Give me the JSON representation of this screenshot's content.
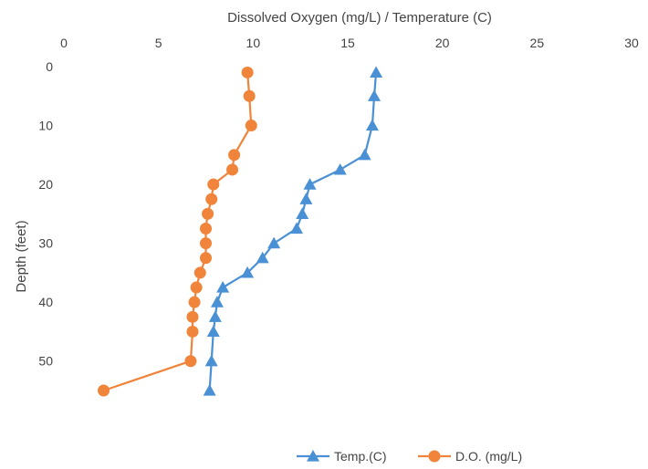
{
  "chart_data": {
    "type": "line",
    "title": "",
    "xlabel": "Dissolved Oxygen (mg/L) / Temperature (C)",
    "ylabel": "Depth (feet)",
    "xlim": [
      0,
      30
    ],
    "ylim": [
      0,
      55
    ],
    "y_inverted": true,
    "x_axis_position": "top",
    "x_ticks": [
      0,
      5,
      10,
      15,
      20,
      25,
      30
    ],
    "y_ticks": [
      0,
      10,
      20,
      30,
      40,
      50
    ],
    "grid": false,
    "legend": "bottom-right",
    "series": [
      {
        "name": "Temp.(C)",
        "color": "#4a90d4",
        "marker": "triangle",
        "points": [
          {
            "x": 16.5,
            "y": 1
          },
          {
            "x": 16.4,
            "y": 5
          },
          {
            "x": 16.3,
            "y": 10
          },
          {
            "x": 15.9,
            "y": 15
          },
          {
            "x": 14.6,
            "y": 17.5
          },
          {
            "x": 13.0,
            "y": 20
          },
          {
            "x": 12.8,
            "y": 22.5
          },
          {
            "x": 12.6,
            "y": 25
          },
          {
            "x": 12.3,
            "y": 27.5
          },
          {
            "x": 11.1,
            "y": 30
          },
          {
            "x": 10.5,
            "y": 32.5
          },
          {
            "x": 9.7,
            "y": 35
          },
          {
            "x": 8.4,
            "y": 37.5
          },
          {
            "x": 8.1,
            "y": 40
          },
          {
            "x": 8.0,
            "y": 42.5
          },
          {
            "x": 7.9,
            "y": 45
          },
          {
            "x": 7.8,
            "y": 50
          },
          {
            "x": 7.7,
            "y": 55
          }
        ]
      },
      {
        "name": "D.O. (mg/L)",
        "color": "#f0843a",
        "marker": "circle",
        "points": [
          {
            "x": 9.7,
            "y": 1
          },
          {
            "x": 9.8,
            "y": 5
          },
          {
            "x": 9.9,
            "y": 10
          },
          {
            "x": 9.0,
            "y": 15
          },
          {
            "x": 8.9,
            "y": 17.5
          },
          {
            "x": 7.9,
            "y": 20
          },
          {
            "x": 7.8,
            "y": 22.5
          },
          {
            "x": 7.6,
            "y": 25
          },
          {
            "x": 7.5,
            "y": 27.5
          },
          {
            "x": 7.5,
            "y": 30
          },
          {
            "x": 7.5,
            "y": 32.5
          },
          {
            "x": 7.2,
            "y": 35
          },
          {
            "x": 7.0,
            "y": 37.5
          },
          {
            "x": 6.9,
            "y": 40
          },
          {
            "x": 6.8,
            "y": 42.5
          },
          {
            "x": 6.8,
            "y": 45
          },
          {
            "x": 6.7,
            "y": 50
          },
          {
            "x": 2.1,
            "y": 55
          }
        ]
      }
    ]
  }
}
